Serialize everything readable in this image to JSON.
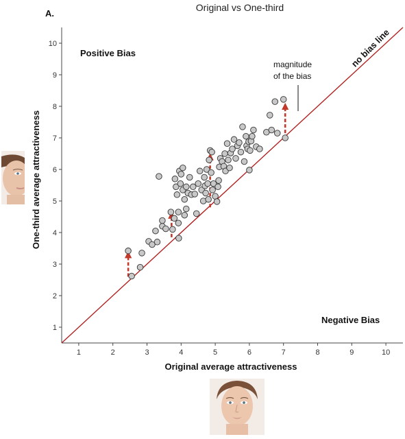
{
  "panel_label": "A.",
  "chart_data": {
    "type": "scatter",
    "title": "Original vs One-third",
    "xlabel": "Original average attractiveness",
    "ylabel": "One-third average attractiveness",
    "xlim": [
      0.5,
      10.5
    ],
    "ylim": [
      0.5,
      10.5
    ],
    "xticks": [
      1,
      2,
      3,
      4,
      5,
      6,
      7,
      8,
      9,
      10
    ],
    "yticks": [
      1,
      2,
      3,
      4,
      5,
      6,
      7,
      8,
      9,
      10
    ],
    "grid": false,
    "reference_line": {
      "label": "no bias line",
      "slope": 1,
      "intercept": 0
    },
    "annotations": {
      "positive_bias": "Positive Bias",
      "negative_bias": "Negative Bias",
      "magnitude": [
        "magnitude",
        "of the bias"
      ]
    },
    "bias_arrows": [
      {
        "x": 2.45,
        "from": 2.6,
        "to": 3.3
      },
      {
        "x": 3.72,
        "from": 3.85,
        "to": 4.55
      },
      {
        "x": 4.85,
        "from": 4.8,
        "to": 6.4
      },
      {
        "x": 7.05,
        "from": 7.15,
        "to": 8.0
      }
    ],
    "points": [
      {
        "x": 2.45,
        "y": 3.42
      },
      {
        "x": 2.55,
        "y": 2.62
      },
      {
        "x": 2.8,
        "y": 2.9
      },
      {
        "x": 2.85,
        "y": 3.35
      },
      {
        "x": 3.05,
        "y": 3.72
      },
      {
        "x": 3.15,
        "y": 3.62
      },
      {
        "x": 3.25,
        "y": 4.05
      },
      {
        "x": 3.3,
        "y": 3.7
      },
      {
        "x": 3.35,
        "y": 5.78
      },
      {
        "x": 3.45,
        "y": 4.2
      },
      {
        "x": 3.45,
        "y": 4.38
      },
      {
        "x": 3.55,
        "y": 4.12
      },
      {
        "x": 3.7,
        "y": 4.65
      },
      {
        "x": 3.75,
        "y": 4.1
      },
      {
        "x": 3.8,
        "y": 4.45
      },
      {
        "x": 3.82,
        "y": 5.7
      },
      {
        "x": 3.85,
        "y": 5.45
      },
      {
        "x": 3.88,
        "y": 5.2
      },
      {
        "x": 3.92,
        "y": 4.65
      },
      {
        "x": 3.92,
        "y": 4.3
      },
      {
        "x": 3.93,
        "y": 3.82
      },
      {
        "x": 3.95,
        "y": 5.95
      },
      {
        "x": 3.98,
        "y": 5.55
      },
      {
        "x": 4.0,
        "y": 5.85
      },
      {
        "x": 4.05,
        "y": 5.35
      },
      {
        "x": 4.05,
        "y": 6.05
      },
      {
        "x": 4.1,
        "y": 4.55
      },
      {
        "x": 4.1,
        "y": 5.05
      },
      {
        "x": 4.15,
        "y": 4.75
      },
      {
        "x": 4.15,
        "y": 5.45
      },
      {
        "x": 4.2,
        "y": 5.25
      },
      {
        "x": 4.25,
        "y": 5.75
      },
      {
        "x": 4.3,
        "y": 5.2
      },
      {
        "x": 4.35,
        "y": 5.45
      },
      {
        "x": 4.4,
        "y": 5.22
      },
      {
        "x": 4.45,
        "y": 4.6
      },
      {
        "x": 4.5,
        "y": 5.55
      },
      {
        "x": 4.55,
        "y": 5.95
      },
      {
        "x": 4.6,
        "y": 5.35
      },
      {
        "x": 4.65,
        "y": 5.0
      },
      {
        "x": 4.68,
        "y": 5.75
      },
      {
        "x": 4.7,
        "y": 5.48
      },
      {
        "x": 4.72,
        "y": 5.25
      },
      {
        "x": 4.75,
        "y": 6.0
      },
      {
        "x": 4.78,
        "y": 5.55
      },
      {
        "x": 4.8,
        "y": 5.05
      },
      {
        "x": 4.82,
        "y": 6.3
      },
      {
        "x": 4.85,
        "y": 6.6
      },
      {
        "x": 4.88,
        "y": 5.9
      },
      {
        "x": 4.9,
        "y": 6.55
      },
      {
        "x": 4.92,
        "y": 5.35
      },
      {
        "x": 4.95,
        "y": 5.55
      },
      {
        "x": 5.0,
        "y": 5.15
      },
      {
        "x": 5.05,
        "y": 4.98
      },
      {
        "x": 5.08,
        "y": 5.45
      },
      {
        "x": 5.1,
        "y": 5.65
      },
      {
        "x": 5.12,
        "y": 6.08
      },
      {
        "x": 5.15,
        "y": 6.35
      },
      {
        "x": 5.2,
        "y": 6.25
      },
      {
        "x": 5.25,
        "y": 6.1
      },
      {
        "x": 5.28,
        "y": 6.5
      },
      {
        "x": 5.3,
        "y": 5.95
      },
      {
        "x": 5.35,
        "y": 6.82
      },
      {
        "x": 5.38,
        "y": 6.3
      },
      {
        "x": 5.42,
        "y": 6.05
      },
      {
        "x": 5.45,
        "y": 6.52
      },
      {
        "x": 5.5,
        "y": 6.65
      },
      {
        "x": 5.55,
        "y": 6.95
      },
      {
        "x": 5.6,
        "y": 6.35
      },
      {
        "x": 5.65,
        "y": 6.75
      },
      {
        "x": 5.7,
        "y": 6.85
      },
      {
        "x": 5.75,
        "y": 6.55
      },
      {
        "x": 5.8,
        "y": 7.35
      },
      {
        "x": 5.85,
        "y": 6.25
      },
      {
        "x": 5.9,
        "y": 7.05
      },
      {
        "x": 5.92,
        "y": 6.75
      },
      {
        "x": 5.95,
        "y": 6.65
      },
      {
        "x": 5.98,
        "y": 6.88
      },
      {
        "x": 6.0,
        "y": 5.98
      },
      {
        "x": 6.02,
        "y": 6.6
      },
      {
        "x": 6.05,
        "y": 6.9
      },
      {
        "x": 6.08,
        "y": 7.05
      },
      {
        "x": 6.12,
        "y": 7.25
      },
      {
        "x": 6.2,
        "y": 6.72
      },
      {
        "x": 6.3,
        "y": 6.65
      },
      {
        "x": 6.5,
        "y": 7.18
      },
      {
        "x": 6.65,
        "y": 7.25
      },
      {
        "x": 6.6,
        "y": 7.72
      },
      {
        "x": 6.75,
        "y": 8.15
      },
      {
        "x": 6.82,
        "y": 7.15
      },
      {
        "x": 7.0,
        "y": 8.22
      },
      {
        "x": 7.05,
        "y": 7.0
      }
    ]
  }
}
